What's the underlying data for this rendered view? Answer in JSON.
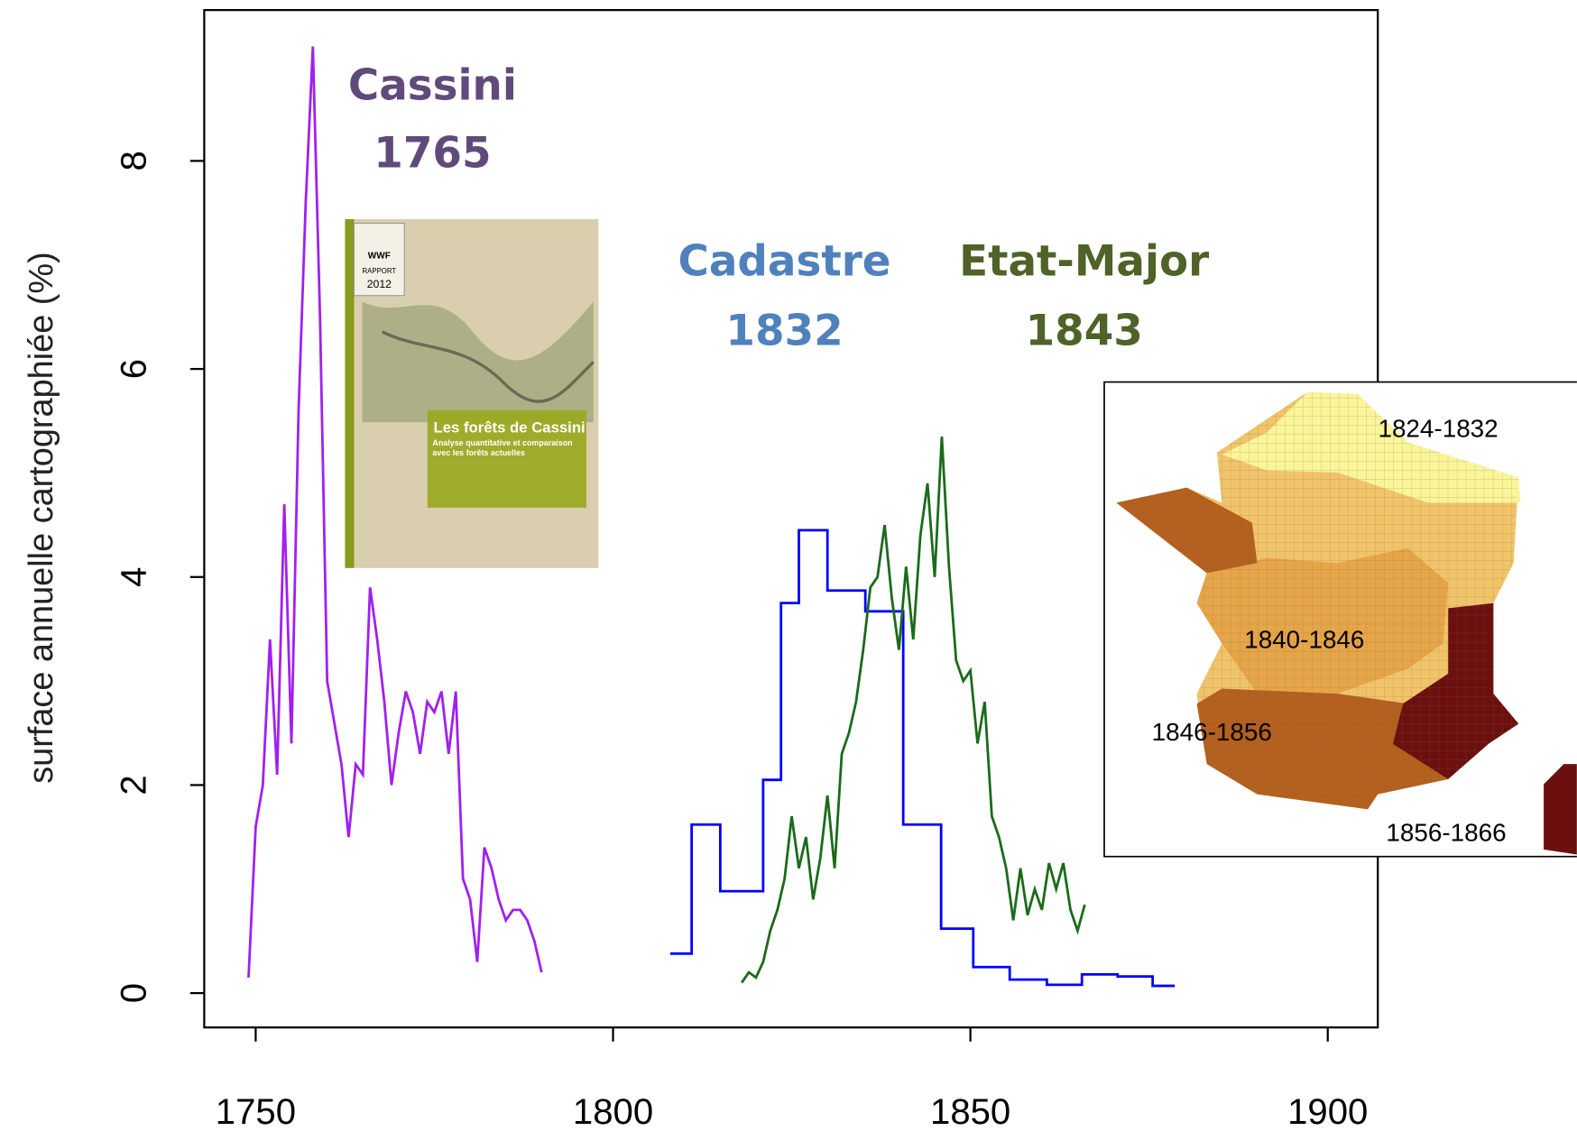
{
  "chart_data": {
    "type": "line",
    "ylabel": "surface annuelle cartographiée (%)",
    "xlim": [
      1742.8,
      1907
    ],
    "ylim": [
      -0.33,
      9.45
    ],
    "xticks": [
      1750,
      1800,
      1850,
      1900
    ],
    "yticks": [
      0,
      2,
      4,
      6,
      8
    ],
    "series": [
      {
        "name": "Cassini",
        "year": "1765",
        "color": "#a020f0",
        "label_color": "#604a7b",
        "step": false,
        "x": [
          1749,
          1750,
          1751,
          1752,
          1753,
          1754,
          1755,
          1756,
          1757,
          1758,
          1759,
          1760,
          1761,
          1762,
          1763,
          1764,
          1765,
          1766,
          1767,
          1768,
          1769,
          1770,
          1771,
          1772,
          1773,
          1774,
          1775,
          1776,
          1777,
          1778,
          1779,
          1780,
          1781,
          1782,
          1783,
          1784,
          1785,
          1786,
          1787,
          1788,
          1789,
          1790
        ],
        "values": [
          0.15,
          1.6,
          2.0,
          3.4,
          2.1,
          4.7,
          2.4,
          5.6,
          7.6,
          9.1,
          6.5,
          3.0,
          2.6,
          2.2,
          1.5,
          2.2,
          2.1,
          3.9,
          3.4,
          2.8,
          2.0,
          2.5,
          2.9,
          2.7,
          2.3,
          2.8,
          2.7,
          2.9,
          2.3,
          2.9,
          1.1,
          0.9,
          0.3,
          1.4,
          1.2,
          0.9,
          0.7,
          0.8,
          0.8,
          0.7,
          0.5,
          0.2
        ]
      },
      {
        "name": "Cadastre",
        "year": "1832",
        "color": "#0000ff",
        "label_color": "#4f81bd",
        "step": true,
        "x": [
          1808,
          1811,
          1815,
          1821,
          1823.5,
          1826,
          1830,
          1835.3,
          1840.6,
          1845.9,
          1850.4,
          1855.5,
          1860.7,
          1865.6,
          1870.6,
          1875.5,
          1878.6
        ],
        "values": [
          0.38,
          1.62,
          0.98,
          2.05,
          3.75,
          4.45,
          3.87,
          3.67,
          1.62,
          0.62,
          0.25,
          0.13,
          0.08,
          0.18,
          0.16,
          0.07,
          0.07
        ]
      },
      {
        "name": "Etat-Major",
        "year": "1843",
        "color": "#1a6b1a",
        "label_color": "#4f6228",
        "step": false,
        "x": [
          1818,
          1819,
          1820,
          1821,
          1822,
          1823,
          1824,
          1825,
          1826,
          1827,
          1828,
          1829,
          1830,
          1831,
          1832,
          1833,
          1834,
          1835,
          1836,
          1837,
          1838,
          1839,
          1840,
          1841,
          1842,
          1843,
          1844,
          1845,
          1846,
          1847,
          1848,
          1849,
          1850,
          1851,
          1852,
          1853,
          1854,
          1855,
          1856,
          1857,
          1858,
          1859,
          1860,
          1861,
          1862,
          1863,
          1864,
          1865,
          1866
        ],
        "values": [
          0.1,
          0.2,
          0.15,
          0.3,
          0.6,
          0.8,
          1.1,
          1.7,
          1.2,
          1.5,
          0.9,
          1.3,
          1.9,
          1.2,
          2.3,
          2.5,
          2.8,
          3.3,
          3.9,
          4.0,
          4.5,
          3.8,
          3.3,
          4.1,
          3.4,
          4.4,
          4.9,
          4.0,
          5.35,
          4.1,
          3.2,
          3.0,
          3.1,
          2.4,
          2.8,
          1.7,
          1.5,
          1.2,
          0.7,
          1.2,
          0.75,
          1.0,
          0.8,
          1.25,
          1.0,
          1.25,
          0.8,
          0.6,
          0.85
        ]
      }
    ],
    "cover": {
      "title": "Les forêts de Cassini",
      "subtitle": "Analyse quantitative et comparaison avec les forêts actuelles",
      "badge": "RAPPORT",
      "year": "2012",
      "logo": "WWF"
    },
    "inset": {
      "labels": [
        "1824-1832",
        "1840-1846",
        "1846-1856",
        "1856-1866"
      ]
    }
  }
}
